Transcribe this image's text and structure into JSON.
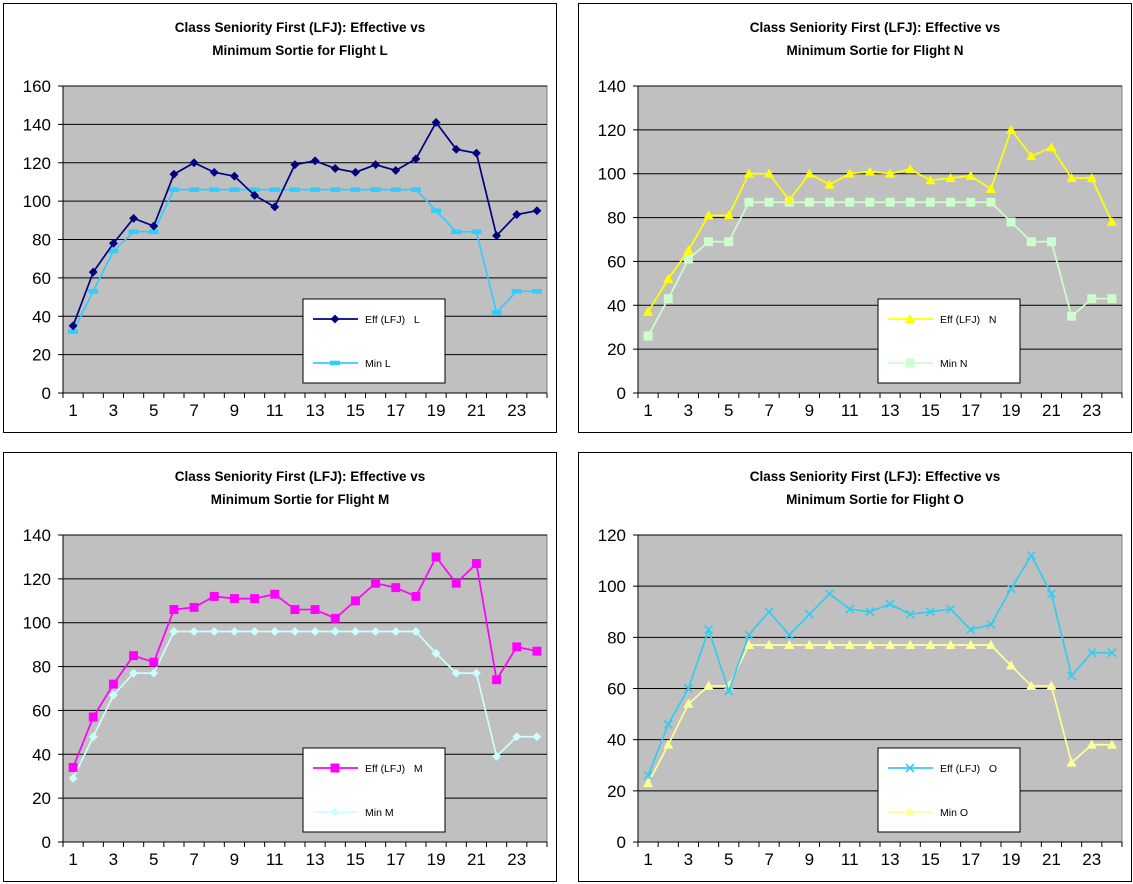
{
  "chart_data": [
    {
      "type": "line",
      "title_line1": "Class Seniority First (LFJ): Effective vs",
      "title_line2": "Minimum Sortie for Flight L",
      "x": [
        1,
        2,
        3,
        4,
        5,
        6,
        7,
        8,
        9,
        10,
        11,
        12,
        13,
        14,
        15,
        16,
        17,
        18,
        19,
        20,
        21,
        22,
        23,
        24
      ],
      "x_tick_labels": [
        "1",
        "3",
        "5",
        "7",
        "9",
        "11",
        "13",
        "15",
        "17",
        "19",
        "21",
        "23"
      ],
      "ylim": [
        0,
        160
      ],
      "y_ticks": [
        0,
        20,
        40,
        60,
        80,
        100,
        120,
        140,
        160
      ],
      "grid": true,
      "legend_position": "inside-lower-right",
      "series": [
        {
          "name": "Eff (LFJ)   L",
          "color": "#000080",
          "marker": "diamond",
          "values": [
            35,
            63,
            78,
            91,
            87,
            114,
            120,
            115,
            113,
            103,
            97,
            119,
            121,
            117,
            115,
            119,
            116,
            122,
            141,
            127,
            125,
            82,
            93,
            95
          ]
        },
        {
          "name": "Min L",
          "color": "#33ccff",
          "marker": "dash",
          "values": [
            32,
            53,
            74,
            84,
            84,
            106,
            106,
            106,
            106,
            106,
            106,
            106,
            106,
            106,
            106,
            106,
            106,
            106,
            95,
            84,
            84,
            42,
            53,
            53
          ]
        }
      ]
    },
    {
      "type": "line",
      "title_line1": "Class Seniority First (LFJ): Effective vs",
      "title_line2": "Minimum Sortie for Flight N",
      "x": [
        1,
        2,
        3,
        4,
        5,
        6,
        7,
        8,
        9,
        10,
        11,
        12,
        13,
        14,
        15,
        16,
        17,
        18,
        19,
        20,
        21,
        22,
        23,
        24
      ],
      "x_tick_labels": [
        "1",
        "3",
        "5",
        "7",
        "9",
        "11",
        "13",
        "15",
        "17",
        "19",
        "21",
        "23"
      ],
      "ylim": [
        0,
        140
      ],
      "y_ticks": [
        0,
        20,
        40,
        60,
        80,
        100,
        120,
        140
      ],
      "grid": true,
      "legend_position": "inside-lower-right",
      "series": [
        {
          "name": "Eff (LFJ)   N",
          "color": "#ffff00",
          "marker": "triangle",
          "values": [
            37,
            52,
            65,
            81,
            81,
            100,
            100,
            88,
            100,
            95,
            100,
            101,
            100,
            102,
            97,
            98,
            99,
            93,
            120,
            108,
            112,
            98,
            98,
            78
          ]
        },
        {
          "name": "Min N",
          "color": "#ccffcc",
          "marker": "square",
          "values": [
            26,
            43,
            61,
            69,
            69,
            87,
            87,
            87,
            87,
            87,
            87,
            87,
            87,
            87,
            87,
            87,
            87,
            87,
            78,
            69,
            69,
            35,
            43,
            43
          ]
        }
      ]
    },
    {
      "type": "line",
      "title_line1": "Class Seniority First (LFJ): Effective vs",
      "title_line2": "Minimum Sortie for Flight M",
      "x": [
        1,
        2,
        3,
        4,
        5,
        6,
        7,
        8,
        9,
        10,
        11,
        12,
        13,
        14,
        15,
        16,
        17,
        18,
        19,
        20,
        21,
        22,
        23,
        24
      ],
      "x_tick_labels": [
        "1",
        "3",
        "5",
        "7",
        "9",
        "11",
        "13",
        "15",
        "17",
        "19",
        "21",
        "23"
      ],
      "ylim": [
        0,
        140
      ],
      "y_ticks": [
        0,
        20,
        40,
        60,
        80,
        100,
        120,
        140
      ],
      "grid": true,
      "legend_position": "inside-lower-right",
      "series": [
        {
          "name": "Eff (LFJ)   M",
          "color": "#ff00ff",
          "marker": "square",
          "values": [
            34,
            57,
            72,
            85,
            82,
            106,
            107,
            112,
            111,
            111,
            113,
            106,
            106,
            102,
            110,
            118,
            116,
            112,
            130,
            118,
            127,
            74,
            89,
            87
          ]
        },
        {
          "name": "Min M",
          "color": "#ccffff",
          "marker": "diamond",
          "values": [
            29,
            48,
            67,
            77,
            77,
            96,
            96,
            96,
            96,
            96,
            96,
            96,
            96,
            96,
            96,
            96,
            96,
            96,
            86,
            77,
            77,
            39,
            48,
            48
          ]
        }
      ]
    },
    {
      "type": "line",
      "title_line1": "Class Seniority First (LFJ): Effective vs",
      "title_line2": "Minimum Sortie for Flight O",
      "x": [
        1,
        2,
        3,
        4,
        5,
        6,
        7,
        8,
        9,
        10,
        11,
        12,
        13,
        14,
        15,
        16,
        17,
        18,
        19,
        20,
        21,
        22,
        23,
        24
      ],
      "x_tick_labels": [
        "1",
        "3",
        "5",
        "7",
        "9",
        "11",
        "13",
        "15",
        "17",
        "19",
        "21",
        "23"
      ],
      "ylim": [
        0,
        120
      ],
      "y_ticks": [
        0,
        20,
        40,
        60,
        80,
        100,
        120
      ],
      "grid": true,
      "legend_position": "inside-lower-right",
      "series": [
        {
          "name": "Eff (LFJ)   O",
          "color": "#33ccee",
          "marker": "x",
          "values": [
            26,
            46,
            60,
            83,
            59,
            81,
            90,
            81,
            89,
            97,
            91,
            90,
            93,
            89,
            90,
            91,
            83,
            85,
            99,
            112,
            97,
            65,
            74,
            74
          ]
        },
        {
          "name": "Min O",
          "color": "#ffff99",
          "marker": "triangle",
          "values": [
            23,
            38,
            54,
            61,
            61,
            77,
            77,
            77,
            77,
            77,
            77,
            77,
            77,
            77,
            77,
            77,
            77,
            77,
            69,
            61,
            61,
            31,
            38,
            38
          ]
        }
      ]
    }
  ]
}
